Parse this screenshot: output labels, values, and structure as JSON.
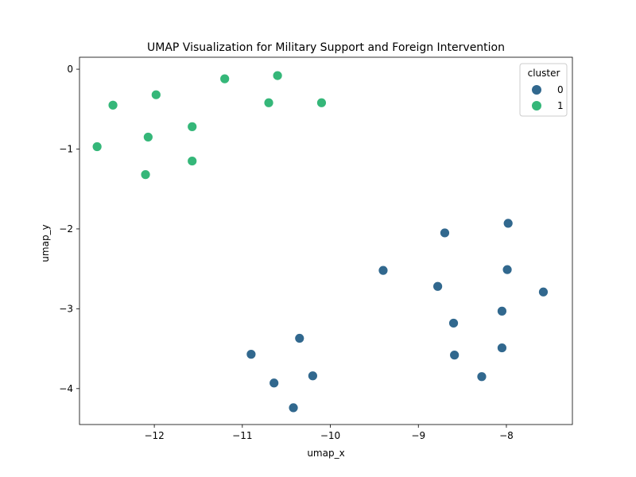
{
  "chart_data": {
    "type": "scatter",
    "title": "UMAP Visualization for Military Support and Foreign Intervention",
    "xlabel": "umap_x",
    "ylabel": "umap_y",
    "xlim": [
      -12.85,
      -7.25
    ],
    "ylim": [
      -4.45,
      0.15
    ],
    "xticks": [
      -12,
      -11,
      -10,
      -9,
      -8
    ],
    "yticks": [
      0,
      -1,
      -2,
      -3,
      -4
    ],
    "grid": false,
    "legend": {
      "title": "cluster",
      "placement": "top-right"
    },
    "series": [
      {
        "name": "0",
        "color": "#31688e",
        "points": [
          [
            -8.7,
            -2.05
          ],
          [
            -7.98,
            -1.93
          ],
          [
            -9.4,
            -2.52
          ],
          [
            -7.99,
            -2.51
          ],
          [
            -8.78,
            -2.72
          ],
          [
            -7.58,
            -2.79
          ],
          [
            -8.05,
            -3.03
          ],
          [
            -8.6,
            -3.18
          ],
          [
            -8.05,
            -3.49
          ],
          [
            -8.59,
            -3.58
          ],
          [
            -8.28,
            -3.85
          ],
          [
            -10.35,
            -3.37
          ],
          [
            -10.9,
            -3.57
          ],
          [
            -10.2,
            -3.84
          ],
          [
            -10.64,
            -3.93
          ],
          [
            -10.42,
            -4.24
          ]
        ]
      },
      {
        "name": "1",
        "color": "#35b779",
        "points": [
          [
            -10.6,
            -0.08
          ],
          [
            -11.2,
            -0.12
          ],
          [
            -11.98,
            -0.32
          ],
          [
            -12.47,
            -0.45
          ],
          [
            -10.7,
            -0.42
          ],
          [
            -10.1,
            -0.42
          ],
          [
            -11.57,
            -0.72
          ],
          [
            -12.07,
            -0.85
          ],
          [
            -12.65,
            -0.97
          ],
          [
            -11.57,
            -1.15
          ],
          [
            -12.1,
            -1.32
          ]
        ]
      }
    ]
  }
}
